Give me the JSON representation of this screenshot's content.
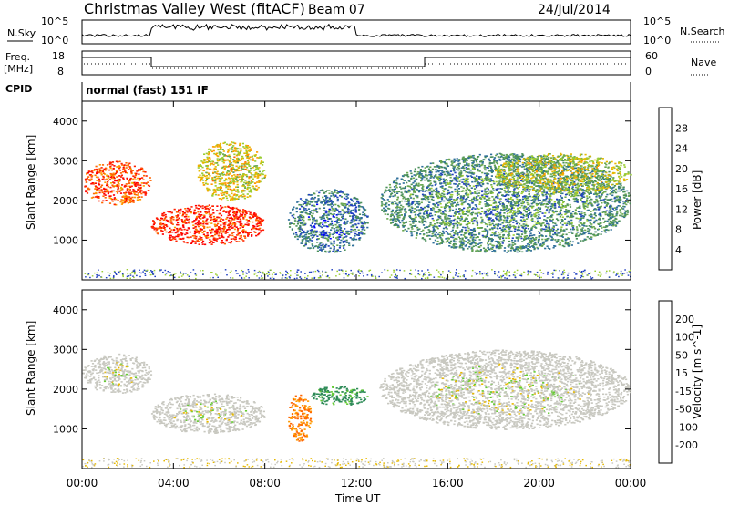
{
  "header": {
    "title": "Christmas Valley West (fitACF)",
    "beam": "Beam 07",
    "date": "24/Jul/2014"
  },
  "labels": {
    "nsky": "N.Sky",
    "nsearch": "N.Search",
    "freq_line1": "Freq.",
    "freq_line2": "[MHz]",
    "nave": "Nave",
    "cpid": "CPID",
    "cpid_value": "normal (fast) 151 IF"
  },
  "noise_axis": {
    "left_ticks": [
      "10^5",
      "10^0"
    ],
    "right_ticks": [
      "10^5",
      "10^0"
    ]
  },
  "freq_axis": {
    "left_ticks": [
      "18",
      "8"
    ],
    "right_ticks": [
      "60",
      "0"
    ]
  },
  "colors": {
    "power_scale": [
      "#0000ff",
      "#2040c0",
      "#2d6e9a",
      "#4a8f5a",
      "#6aa84f",
      "#9acd32",
      "#e6b800",
      "#ff9900",
      "#ff6600",
      "#ff2200",
      "#ff0000"
    ],
    "velocity_scale": [
      "#ff0000",
      "#ff6600",
      "#ff9900",
      "#e6b800",
      "#c8c8c0",
      "#c8c8c0",
      "#66cc33",
      "#2e8b57",
      "#2040c0",
      "#0000ff"
    ]
  },
  "chart_data": [
    {
      "type": "heatmap",
      "panel": "power",
      "xlabel": "",
      "ylabel": "Slant Range [km]",
      "ylim": [
        0,
        4500
      ],
      "y_ticks": [
        "1000",
        "2000",
        "3000",
        "4000"
      ],
      "colorbar": {
        "label": "Power [dB]",
        "ticks": [
          "4",
          "8",
          "12",
          "16",
          "20",
          "24",
          "28"
        ],
        "range": [
          0,
          32
        ]
      },
      "features": [
        {
          "x_hours": [
            0,
            3
          ],
          "range_km": [
            1900,
            3000
          ],
          "power_db": 26
        },
        {
          "x_hours": [
            3,
            8
          ],
          "range_km": [
            900,
            1900
          ],
          "power_db": 28
        },
        {
          "x_hours": [
            5,
            8
          ],
          "range_km": [
            2000,
            3500
          ],
          "power_db": 18
        },
        {
          "x_hours": [
            9,
            12.5
          ],
          "range_km": [
            700,
            2300
          ],
          "power_db": 8
        },
        {
          "x_hours": [
            13,
            24
          ],
          "range_km": [
            700,
            3200
          ],
          "power_db": 10
        },
        {
          "x_hours": [
            18,
            24
          ],
          "range_km": [
            2200,
            3200
          ],
          "power_db": 16
        }
      ]
    },
    {
      "type": "heatmap",
      "panel": "velocity",
      "xlabel": "Time UT",
      "ylabel": "Slant Range [km]",
      "ylim": [
        0,
        4500
      ],
      "y_ticks": [
        "1000",
        "2000",
        "3000",
        "4000"
      ],
      "x_ticks": [
        "00:00",
        "04:00",
        "08:00",
        "12:00",
        "16:00",
        "20:00",
        "00:00"
      ],
      "colorbar": {
        "label": "Velocity [m s^-1]",
        "ticks": [
          "200",
          "100",
          "50",
          "15",
          "-15",
          "-50",
          "-100",
          "-200"
        ]
      },
      "features": [
        {
          "x_hours": [
            0,
            3
          ],
          "range_km": [
            1900,
            2900
          ],
          "velocity_ms": 0
        },
        {
          "x_hours": [
            3,
            8
          ],
          "range_km": [
            900,
            1900
          ],
          "velocity_ms": 0
        },
        {
          "x_hours": [
            9,
            10
          ],
          "range_km": [
            700,
            1900
          ],
          "velocity_ms": -75
        },
        {
          "x_hours": [
            10,
            12.5
          ],
          "range_km": [
            1600,
            2100
          ],
          "velocity_ms": 40
        },
        {
          "x_hours": [
            13,
            24
          ],
          "range_km": [
            1000,
            3000
          ],
          "velocity_ms": 0
        }
      ]
    }
  ]
}
